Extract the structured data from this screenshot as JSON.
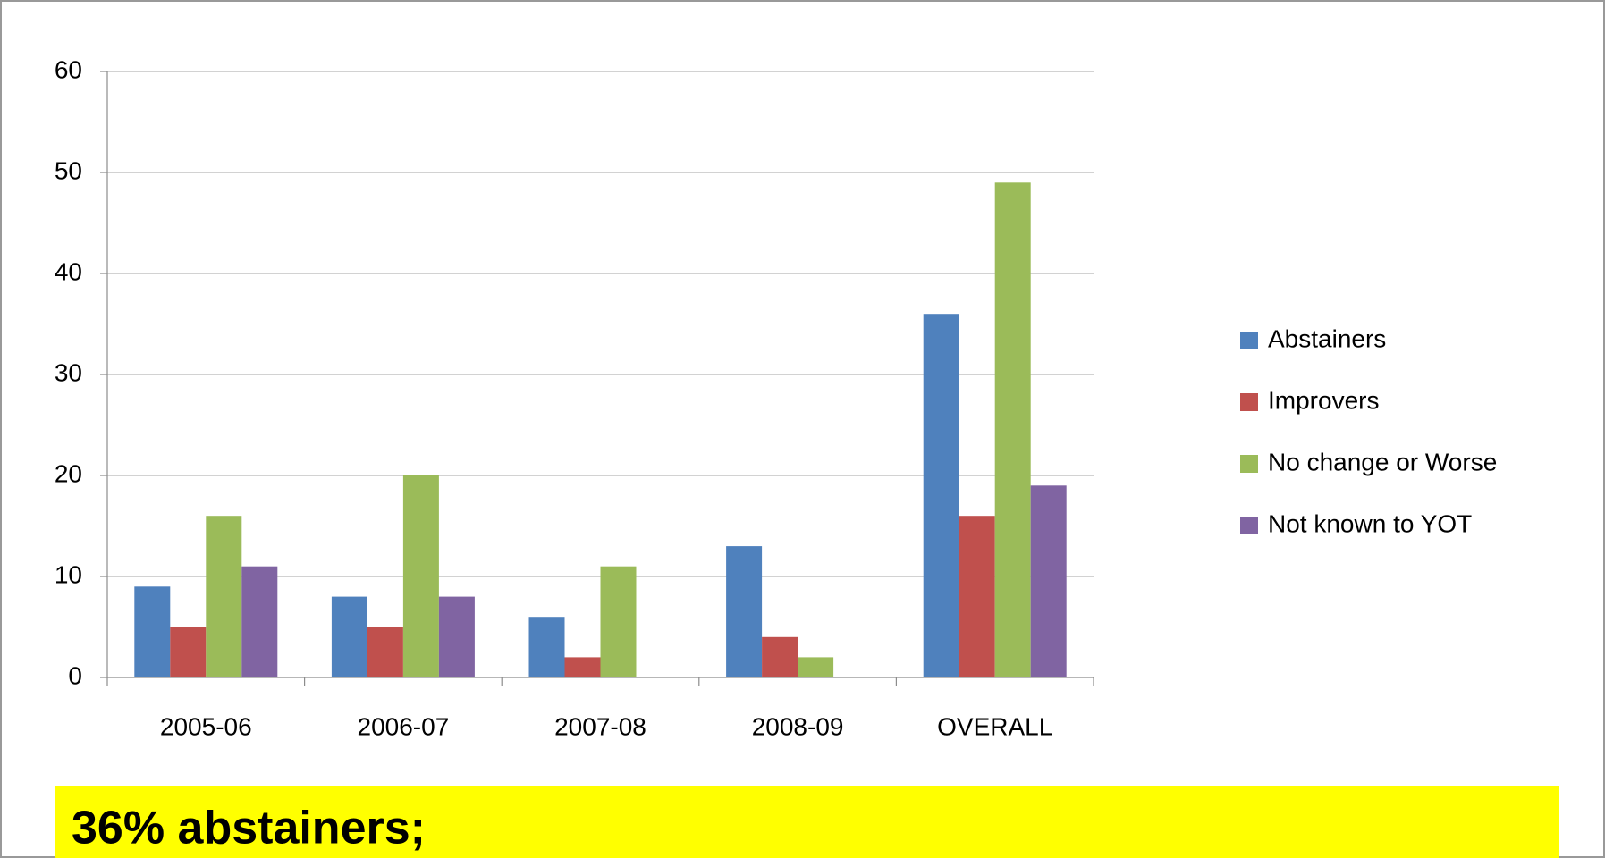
{
  "chart_data": {
    "type": "bar",
    "categories": [
      "2005-06",
      "2006-07",
      "2007-08",
      "2008-09",
      "OVERALL"
    ],
    "series": [
      {
        "name": "Abstainers",
        "color": "#4f81bd",
        "values": [
          9,
          8,
          6,
          13,
          36
        ]
      },
      {
        "name": "Improvers",
        "color": "#c0504d",
        "values": [
          5,
          5,
          2,
          4,
          16
        ]
      },
      {
        "name": "No change or Worse",
        "color": "#9bbb59",
        "values": [
          16,
          20,
          11,
          2,
          49
        ]
      },
      {
        "name": "Not known to YOT",
        "color": "#8064a2",
        "values": [
          11,
          8,
          0,
          0,
          19
        ]
      }
    ],
    "ylim": [
      0,
      60
    ],
    "yticks": [
      0,
      10,
      20,
      30,
      40,
      50,
      60
    ],
    "grid": true,
    "legend": "right",
    "annotation": "36%  abstainers;"
  }
}
